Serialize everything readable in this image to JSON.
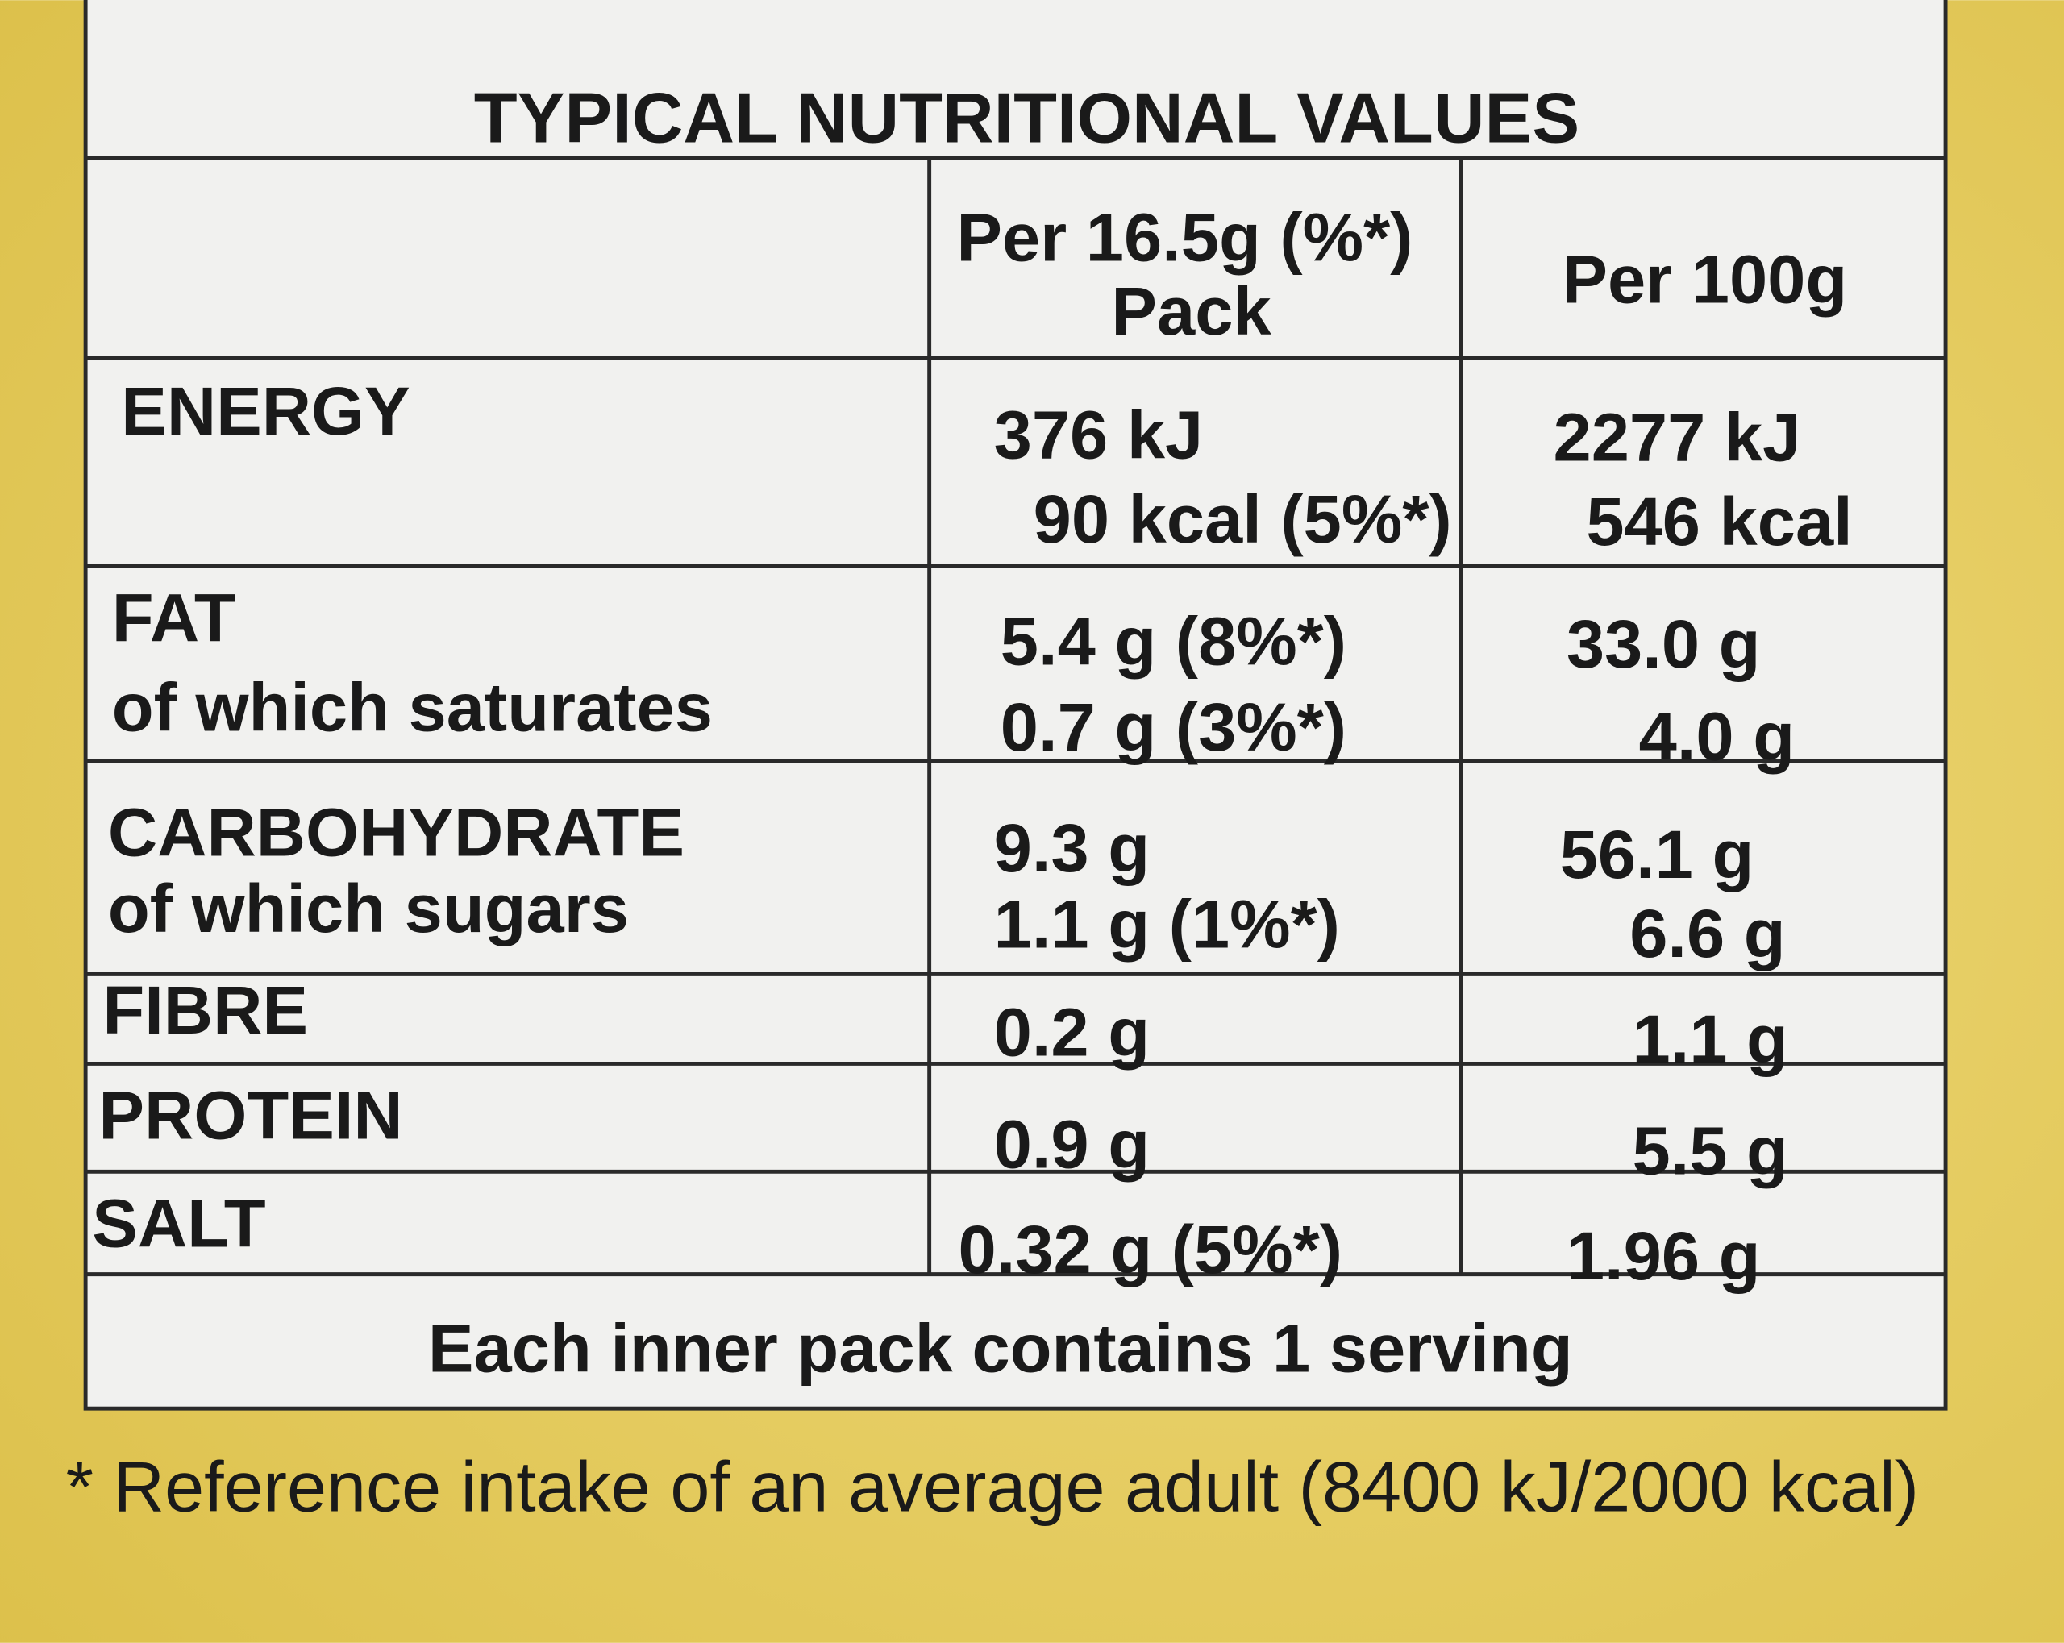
{
  "title": "TYPICAL NUTRITIONAL VALUES",
  "table": {
    "header": {
      "per_serving": [
        "Per 16.5g (%*)",
        "Pack"
      ],
      "per_100g": "Per 100g"
    },
    "rows": [
      {
        "label": [
          "ENERGY"
        ],
        "per_serving": [
          "376 kJ",
          "90 kcal (5%*)"
        ],
        "per_100g": [
          "2277 kJ",
          "546 kcal"
        ]
      },
      {
        "label": [
          "FAT",
          "of which saturates"
        ],
        "per_serving": [
          "5.4 g (8%*)",
          "0.7 g (3%*)"
        ],
        "per_100g": [
          "33.0 g",
          "4.0 g"
        ]
      },
      {
        "label": [
          "CARBOHYDRATE",
          "of which sugars"
        ],
        "per_serving": [
          "9.3 g",
          "1.1 g (1%*)"
        ],
        "per_100g": [
          "56.1 g",
          "6.6 g"
        ]
      },
      {
        "label": [
          "FIBRE"
        ],
        "per_serving": [
          "0.2 g"
        ],
        "per_100g": [
          "1.1 g"
        ]
      },
      {
        "label": [
          "PROTEIN"
        ],
        "per_serving": [
          "0.9 g"
        ],
        "per_100g": [
          "5.5 g"
        ]
      },
      {
        "label": [
          "SALT"
        ],
        "per_serving": [
          "0.32 g (5%*)"
        ],
        "per_100g": [
          "1.96 g"
        ]
      }
    ],
    "footer": "Each inner pack contains 1 serving"
  },
  "footnote": "* Reference intake of an average adult (8400 kJ/2000 kcal)"
}
